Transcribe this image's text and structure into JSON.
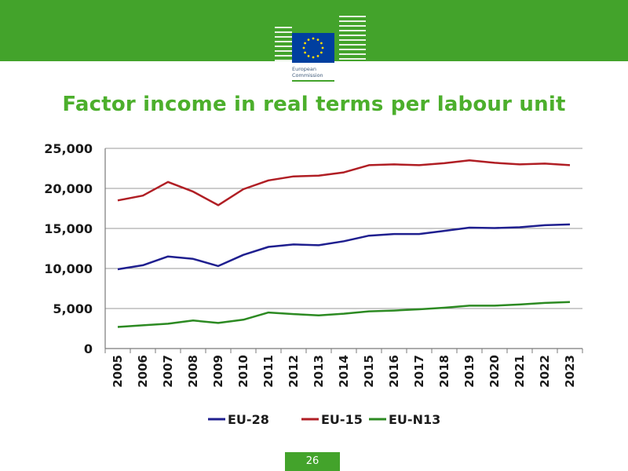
{
  "slide": {
    "title": "Factor income in real terms per labour unit",
    "page_number": "26",
    "logo_text_line1": "European",
    "logo_text_line2": "Commission"
  },
  "colors": {
    "header_green": "#43a32b",
    "title_green": "#4caf2c",
    "eu28": "#1f1f8f",
    "eu15": "#b01e24",
    "eun13": "#2c8a22",
    "eu_flag_blue": "#003f9f",
    "eu_star_yellow": "#ffdd00"
  },
  "chart_data": {
    "type": "line",
    "x": [
      "2005",
      "2006",
      "2007",
      "2008",
      "2009",
      "2010",
      "2011",
      "2012",
      "2013",
      "2014",
      "2015",
      "2016",
      "2017",
      "2018",
      "2019",
      "2020",
      "2021",
      "2022",
      "2023"
    ],
    "ylim": [
      0,
      25000
    ],
    "yticks": [
      0,
      5000,
      10000,
      15000,
      20000,
      25000
    ],
    "ytick_labels": [
      "0",
      "5,000",
      "10,000",
      "15,000",
      "20,000",
      "25,000"
    ],
    "grid": true,
    "legend_position": "bottom",
    "series": [
      {
        "name": "EU-28",
        "color": "#1f1f8f",
        "values": [
          9900,
          10400,
          11500,
          11200,
          10300,
          11700,
          12700,
          13000,
          12900,
          13400,
          14100,
          14300,
          14300,
          14700,
          15100,
          15050,
          15150,
          15400,
          15500
        ]
      },
      {
        "name": "EU-15",
        "color": "#b01e24",
        "values": [
          18500,
          19100,
          20800,
          19600,
          17900,
          19900,
          21000,
          21500,
          21600,
          22000,
          22900,
          23000,
          22900,
          23150,
          23500,
          23200,
          23000,
          23100,
          22900
        ]
      },
      {
        "name": "EU-N13",
        "color": "#2c8a22",
        "values": [
          2700,
          2900,
          3100,
          3500,
          3200,
          3600,
          4500,
          4300,
          4150,
          4350,
          4650,
          4750,
          4900,
          5100,
          5350,
          5350,
          5500,
          5700,
          5800
        ]
      }
    ]
  }
}
